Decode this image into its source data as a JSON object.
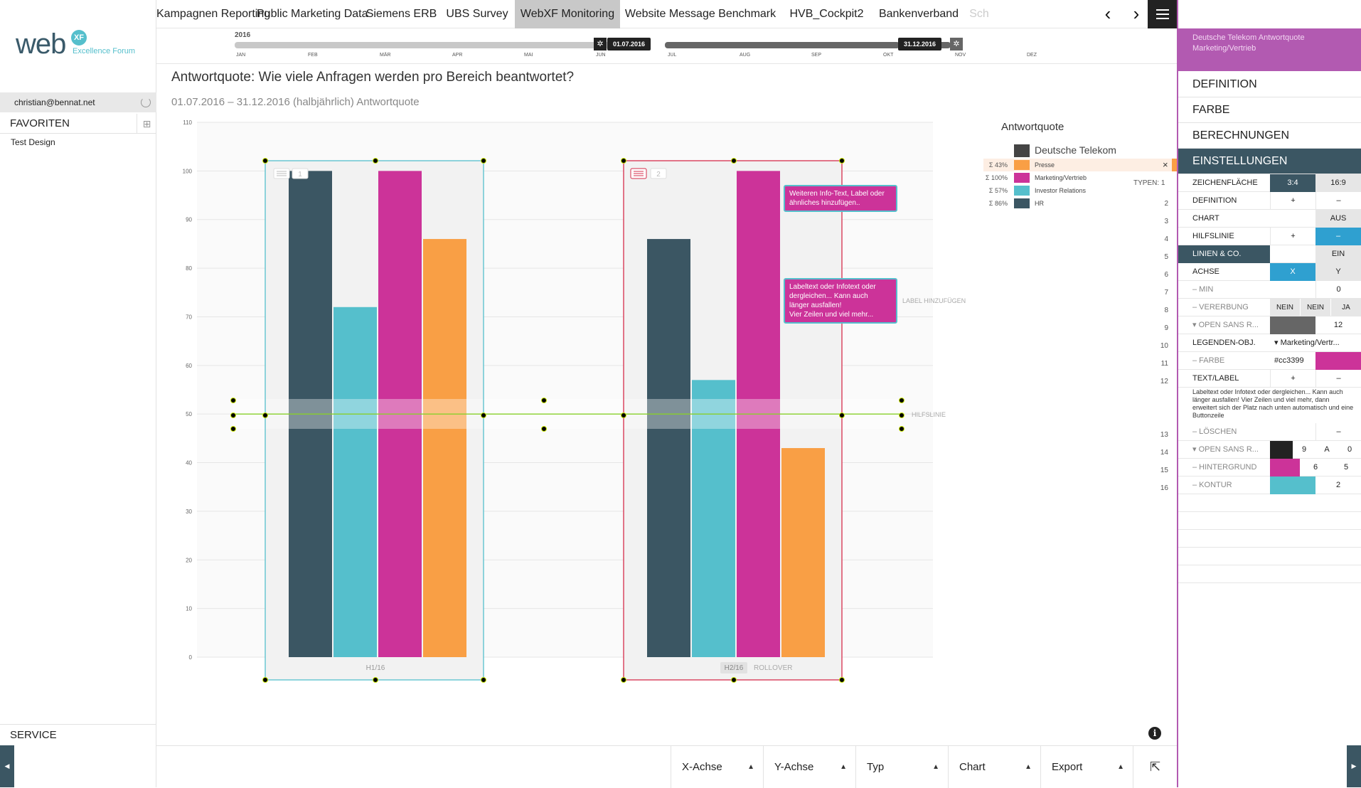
{
  "sidebar": {
    "logo_text": "web",
    "logo_badge": "XF",
    "logo_subtitle": "Excellence Forum",
    "user_email": "christian@bennat.net",
    "favorites_label": "FAVORITEN",
    "favorites": [
      "Test Design"
    ],
    "service_label": "SERVICE"
  },
  "tabs": [
    {
      "label": "Kampagnen Reporting",
      "active": false
    },
    {
      "label": "Public Marketing Data",
      "active": false
    },
    {
      "label": "Siemens ERB",
      "active": false
    },
    {
      "label": "UBS Survey",
      "active": false
    },
    {
      "label": "WebXF Monitoring",
      "active": true
    },
    {
      "label": "Website Message Benchmark",
      "active": false
    },
    {
      "label": "HVB_Cockpit2",
      "active": false
    },
    {
      "label": "Bankenverband",
      "active": false
    },
    {
      "label": "Sch",
      "active": false
    }
  ],
  "timeline": {
    "year": "2016",
    "months": [
      "JAN",
      "FEB",
      "MÄR",
      "APR",
      "MAI",
      "JUN",
      "JUL",
      "AUG",
      "SEP",
      "OKT",
      "NOV",
      "DEZ"
    ],
    "start_date": "01.07.2016",
    "end_date": "31.12.2016"
  },
  "main": {
    "title": "Antwortquote: Wie viele Anfragen werden pro Bereich beantwortet?",
    "subtitle": "01.07.2016 – 31.12.2016 (halbjährlich) Antwortquote"
  },
  "chart_data": {
    "type": "bar",
    "categories": [
      "H1/16",
      "H2/16"
    ],
    "series": [
      {
        "name": "HR",
        "color": "#3b5663",
        "values": [
          100,
          86
        ]
      },
      {
        "name": "Investor Relations",
        "color": "#55bfcc",
        "values": [
          72,
          57
        ]
      },
      {
        "name": "Marketing/Vertrieb",
        "color": "#cc3399",
        "values": [
          100,
          100
        ]
      },
      {
        "name": "Presse",
        "color": "#f99f45",
        "values": [
          86,
          43
        ]
      }
    ],
    "ylim": [
      0,
      110
    ],
    "yticks": [
      0,
      10,
      20,
      30,
      40,
      50,
      60,
      70,
      80,
      90,
      100,
      110
    ],
    "reference_line": {
      "value": 50,
      "label": "HILFSLINIE"
    },
    "group_badges": [
      "1",
      "2"
    ],
    "rollover_label": "ROLLOVER",
    "label_add": "LABEL HINZUFÜGEN",
    "legend": {
      "title": "Antwortquote",
      "group": "Deutsche Telekom",
      "group_color": "#444444",
      "items": [
        {
          "sum": "Σ 43%",
          "label": "Presse",
          "color": "#f99f45"
        },
        {
          "sum": "Σ 100%",
          "label": "Marketing/Vertrieb",
          "color": "#cc3399"
        },
        {
          "sum": "Σ 57%",
          "label": "Investor Relations",
          "color": "#55bfcc"
        },
        {
          "sum": "Σ 86%",
          "label": "HR",
          "color": "#3b5663"
        }
      ]
    }
  },
  "tooltips": {
    "info1": "Weiteren Info-Text, Label oder ähnliches hinzufügen..",
    "info2_lines": [
      "Labeltext oder Infotext oder",
      "dergleichen... Kann auch",
      "länger ausfallen!",
      "Vier Zeilen und viel mehr..."
    ]
  },
  "typen": {
    "label": "TYPEN: 1",
    "rows": [
      "2",
      "3",
      "4",
      "5",
      "6",
      "7",
      "8",
      "9",
      "10",
      "11",
      "12",
      "13",
      "14",
      "15",
      "16"
    ]
  },
  "bottombar": {
    "buttons": [
      "X-Achse",
      "Y-Achse",
      "Typ",
      "Chart",
      "Export"
    ]
  },
  "right_panel": {
    "header": "Deutsche Telekom Antwortquote Marketing/Vertrieb",
    "menu": [
      "DEFINITION",
      "FARBE",
      "BERECHNUNGEN",
      "EINSTELLUNGEN"
    ],
    "settings": {
      "zeichenflaeche": {
        "label": "ZEICHENFLÄCHE",
        "a": "3:4",
        "b": "16:9"
      },
      "definition": {
        "label": "DEFINITION",
        "a": "+",
        "b": "–"
      },
      "chart": {
        "label": "CHART",
        "b": "AUS"
      },
      "hilfslinie": {
        "label": "HILFSLINIE",
        "a": "+",
        "b": "–"
      },
      "linien": {
        "label": "LINIEN & CO.",
        "b": "EIN"
      },
      "achse": {
        "label": "ACHSE",
        "a": "X",
        "b": "Y"
      },
      "min": {
        "label": "– MIN",
        "b": "0"
      },
      "vererbung": {
        "label": "– VERERBUNG",
        "a": "NEIN",
        "m": "NEIN",
        "b": "JA"
      },
      "opensans1": {
        "label": "▾ OPEN SANS R...",
        "b": "12"
      },
      "legenden": {
        "label": "LEGENDEN-OBJ.",
        "val": "▾ Marketing/Vertr..."
      },
      "farbe": {
        "label": "– FARBE",
        "val": "#cc3399"
      },
      "textlabel": {
        "label": "TEXT/LABEL",
        "a": "+",
        "b": "–"
      },
      "note": "Labeltext oder Infotext oder dergleichen... Kann auch länger ausfallen! Vier Zeilen und viel mehr, dann erweitert sich der Platz nach unten automatisch und eine Buttonzeile",
      "loeschen": {
        "label": "– LÖSCHEN",
        "b": "–"
      },
      "opensans2": {
        "label": "▾ OPEN SANS R...",
        "a": "9",
        "m": "A",
        "b": "0"
      },
      "hintergrund": {
        "label": "– HINTERGRUND",
        "a": "6",
        "b": "5"
      },
      "kontur": {
        "label": "– KONTUR",
        "b": "2"
      }
    }
  }
}
